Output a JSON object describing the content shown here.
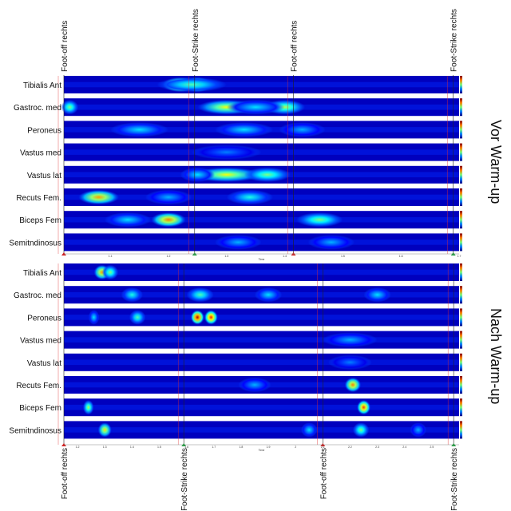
{
  "chart_data": [
    {
      "type": "heatmap",
      "group_label": "Vor Warm-up",
      "x_label": "Time",
      "x_ticks": [
        "1.1",
        "1.2",
        "1.3",
        "1.4",
        "1.5",
        "1.6",
        "1.7"
      ],
      "x_range": [
        1.02,
        1.7
      ],
      "events": [
        {
          "label": "Foot-off rechts",
          "x": 1.02
        },
        {
          "label": "Foot-Strike rechts",
          "x": 1.245
        },
        {
          "label": "Foot-off rechts",
          "x": 1.415
        },
        {
          "label": "Foot-Strike rechts",
          "x": 1.69
        }
      ],
      "muscles": [
        {
          "name": "Tibialis Ant",
          "hotspots": [
            {
              "t": 1.22,
              "w": 0.03,
              "i": 0.98
            },
            {
              "t": 1.25,
              "w": 0.025,
              "i": 0.8
            },
            {
              "t": 1.24,
              "w": 0.06,
              "i": 0.45
            }
          ]
        },
        {
          "name": "Gastroc. med",
          "hotspots": [
            {
              "t": 1.03,
              "w": 0.015,
              "i": 0.5
            },
            {
              "t": 1.3,
              "w": 0.05,
              "i": 0.62
            },
            {
              "t": 1.4,
              "w": 0.035,
              "i": 0.55
            },
            {
              "t": 1.35,
              "w": 0.05,
              "i": 0.35
            }
          ]
        },
        {
          "name": "Peroneus",
          "hotspots": [
            {
              "t": 1.15,
              "w": 0.05,
              "i": 0.35
            },
            {
              "t": 1.33,
              "w": 0.05,
              "i": 0.35
            },
            {
              "t": 1.43,
              "w": 0.04,
              "i": 0.3
            }
          ]
        },
        {
          "name": "Vastus med",
          "hotspots": [
            {
              "t": 1.3,
              "w": 0.06,
              "i": 0.25
            }
          ]
        },
        {
          "name": "Vastus lat",
          "hotspots": [
            {
              "t": 1.3,
              "w": 0.06,
              "i": 0.62
            },
            {
              "t": 1.37,
              "w": 0.04,
              "i": 0.5
            },
            {
              "t": 1.25,
              "w": 0.03,
              "i": 0.35
            }
          ]
        },
        {
          "name": "Recuts Fem.",
          "hotspots": [
            {
              "t": 1.08,
              "w": 0.035,
              "i": 0.72
            },
            {
              "t": 1.34,
              "w": 0.04,
              "i": 0.4
            },
            {
              "t": 1.2,
              "w": 0.04,
              "i": 0.3
            }
          ]
        },
        {
          "name": "Biceps Fem",
          "hotspots": [
            {
              "t": 1.2,
              "w": 0.03,
              "i": 0.75
            },
            {
              "t": 1.46,
              "w": 0.04,
              "i": 0.5
            },
            {
              "t": 1.13,
              "w": 0.04,
              "i": 0.35
            }
          ]
        },
        {
          "name": "Semitndinosus",
          "hotspots": [
            {
              "t": 1.32,
              "w": 0.04,
              "i": 0.3
            },
            {
              "t": 1.48,
              "w": 0.04,
              "i": 0.3
            }
          ]
        }
      ]
    },
    {
      "type": "heatmap",
      "group_label": "Nach Warm-up",
      "x_label": "Time",
      "x_ticks": [
        "1.2",
        "1.3",
        "1.4",
        "1.5",
        "1.6",
        "1.7",
        "1.8",
        "1.9",
        "2",
        "2.1",
        "2.2",
        "2.3",
        "2.4",
        "2.5"
      ],
      "x_range": [
        1.15,
        2.6
      ],
      "events": [
        {
          "label": "Foot-off rechts",
          "x": 1.15
        },
        {
          "label": "Foot-Strike rechts",
          "x": 1.59
        },
        {
          "label": "Foot-off rechts",
          "x": 2.1
        },
        {
          "label": "Foot-Strike rechts",
          "x": 2.58
        }
      ],
      "muscles": [
        {
          "name": "Tibialis Ant",
          "hotspots": [
            {
              "t": 1.29,
              "w": 0.03,
              "i": 0.72
            },
            {
              "t": 1.32,
              "w": 0.03,
              "i": 0.5
            }
          ]
        },
        {
          "name": "Gastroc. med",
          "hotspots": [
            {
              "t": 1.4,
              "w": 0.04,
              "i": 0.4
            },
            {
              "t": 1.65,
              "w": 0.05,
              "i": 0.45
            },
            {
              "t": 1.9,
              "w": 0.05,
              "i": 0.35
            },
            {
              "t": 2.3,
              "w": 0.05,
              "i": 0.35
            }
          ]
        },
        {
          "name": "Peroneus",
          "hotspots": [
            {
              "t": 1.64,
              "w": 0.025,
              "i": 0.95
            },
            {
              "t": 1.69,
              "w": 0.025,
              "i": 0.85
            },
            {
              "t": 1.42,
              "w": 0.03,
              "i": 0.45
            },
            {
              "t": 1.26,
              "w": 0.02,
              "i": 0.35
            }
          ]
        },
        {
          "name": "Vastus med",
          "hotspots": [
            {
              "t": 2.2,
              "w": 0.1,
              "i": 0.3
            }
          ]
        },
        {
          "name": "Vastus lat",
          "hotspots": [
            {
              "t": 2.2,
              "w": 0.08,
              "i": 0.25
            }
          ]
        },
        {
          "name": "Recuts Fem.",
          "hotspots": [
            {
              "t": 2.21,
              "w": 0.03,
              "i": 0.75
            },
            {
              "t": 1.85,
              "w": 0.06,
              "i": 0.3
            }
          ]
        },
        {
          "name": "Biceps Fem",
          "hotspots": [
            {
              "t": 2.25,
              "w": 0.025,
              "i": 0.82
            },
            {
              "t": 1.24,
              "w": 0.02,
              "i": 0.55
            }
          ]
        },
        {
          "name": "Semitndinosus",
          "hotspots": [
            {
              "t": 1.3,
              "w": 0.025,
              "i": 0.65
            },
            {
              "t": 2.24,
              "w": 0.03,
              "i": 0.5
            },
            {
              "t": 2.05,
              "w": 0.03,
              "i": 0.35
            },
            {
              "t": 2.45,
              "w": 0.03,
              "i": 0.3
            }
          ]
        }
      ]
    }
  ]
}
